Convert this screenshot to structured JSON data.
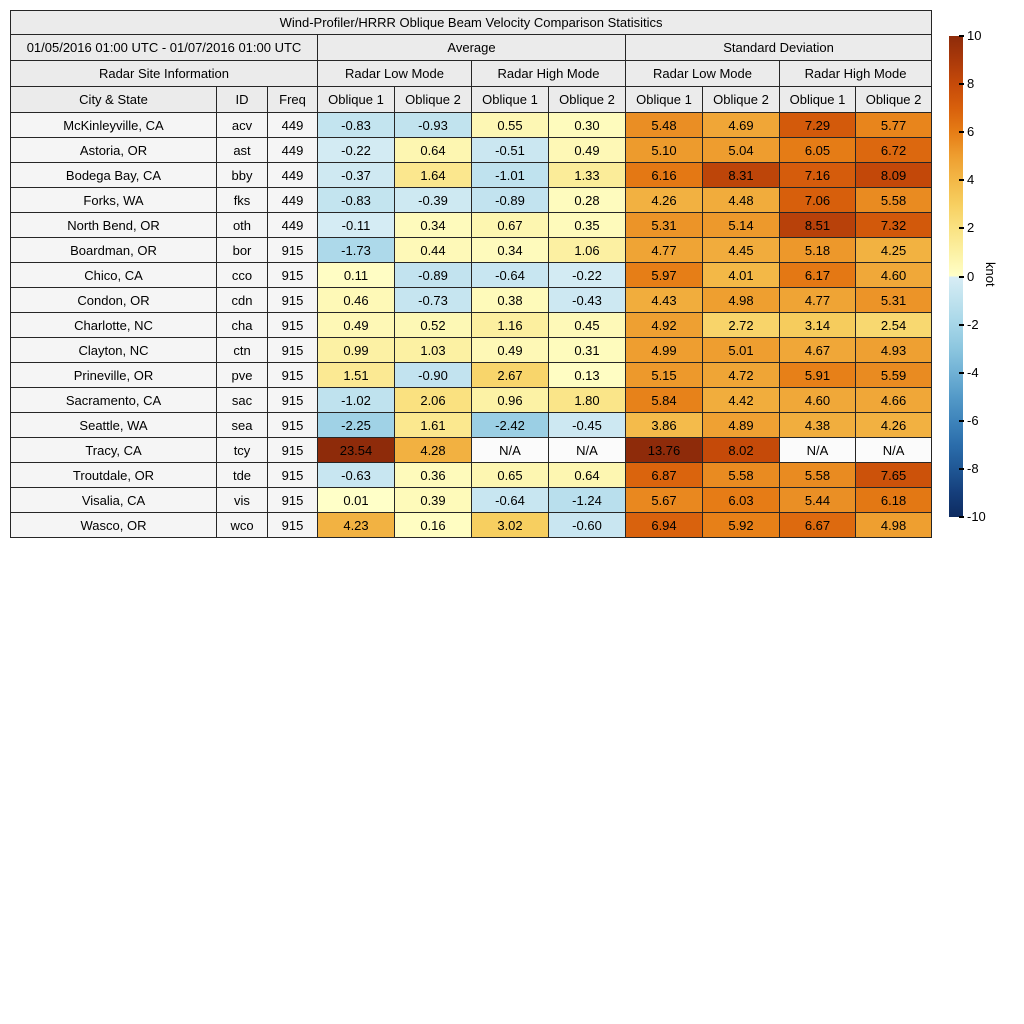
{
  "chart_data": {
    "type": "heatmap",
    "title": "Wind-Profiler/HRRR Oblique Beam Velocity Comparison Statisitics",
    "period": "01/05/2016 01:00 UTC - 01/07/2016 01:00 UTC",
    "group_headers": {
      "average": "Average",
      "std": "Standard Deviation"
    },
    "mode_headers": {
      "low": "Radar Low Mode",
      "high": "Radar High Mode"
    },
    "site_info_header": "Radar Site Information",
    "col_headers": {
      "city": "City & State",
      "id": "ID",
      "freq": "Freq",
      "oblique1": "Oblique 1",
      "oblique2": "Oblique 2"
    },
    "na_text": "N/A",
    "value_columns": [
      "Average Radar Low Mode Oblique 1",
      "Average Radar Low Mode Oblique 2",
      "Average Radar High Mode Oblique 1",
      "Average Radar High Mode Oblique 2",
      "Standard Deviation Radar Low Mode Oblique 1",
      "Standard Deviation Radar Low Mode Oblique 2",
      "Standard Deviation Radar High Mode Oblique 1",
      "Standard Deviation Radar High Mode Oblique 2"
    ],
    "rows": [
      {
        "city": "McKinleyville, CA",
        "id": "acv",
        "freq": 449,
        "values": [
          -0.83,
          -0.93,
          0.55,
          0.3,
          5.48,
          4.69,
          7.29,
          5.77
        ]
      },
      {
        "city": "Astoria, OR",
        "id": "ast",
        "freq": 449,
        "values": [
          -0.22,
          0.64,
          -0.51,
          0.49,
          5.1,
          5.04,
          6.05,
          6.72
        ]
      },
      {
        "city": "Bodega Bay, CA",
        "id": "bby",
        "freq": 449,
        "values": [
          -0.37,
          1.64,
          -1.01,
          1.33,
          6.16,
          8.31,
          7.16,
          8.09
        ]
      },
      {
        "city": "Forks, WA",
        "id": "fks",
        "freq": 449,
        "values": [
          -0.83,
          -0.39,
          -0.89,
          0.28,
          4.26,
          4.48,
          7.06,
          5.58
        ]
      },
      {
        "city": "North Bend, OR",
        "id": "oth",
        "freq": 449,
        "values": [
          -0.11,
          0.34,
          0.67,
          0.35,
          5.31,
          5.14,
          8.51,
          7.32
        ]
      },
      {
        "city": "Boardman, OR",
        "id": "bor",
        "freq": 915,
        "values": [
          -1.73,
          0.44,
          0.34,
          1.06,
          4.77,
          4.45,
          5.18,
          4.25
        ]
      },
      {
        "city": "Chico, CA",
        "id": "cco",
        "freq": 915,
        "values": [
          0.11,
          -0.89,
          -0.64,
          -0.22,
          5.97,
          4.01,
          6.17,
          4.6
        ]
      },
      {
        "city": "Condon, OR",
        "id": "cdn",
        "freq": 915,
        "values": [
          0.46,
          -0.73,
          0.38,
          -0.43,
          4.43,
          4.98,
          4.77,
          5.31
        ]
      },
      {
        "city": "Charlotte, NC",
        "id": "cha",
        "freq": 915,
        "values": [
          0.49,
          0.52,
          1.16,
          0.45,
          4.92,
          2.72,
          3.14,
          2.54
        ]
      },
      {
        "city": "Clayton, NC",
        "id": "ctn",
        "freq": 915,
        "values": [
          0.99,
          1.03,
          0.49,
          0.31,
          4.99,
          5.01,
          4.67,
          4.93
        ]
      },
      {
        "city": "Prineville, OR",
        "id": "pve",
        "freq": 915,
        "values": [
          1.51,
          -0.9,
          2.67,
          0.13,
          5.15,
          4.72,
          5.91,
          5.59
        ]
      },
      {
        "city": "Sacramento, CA",
        "id": "sac",
        "freq": 915,
        "values": [
          -1.02,
          2.06,
          0.96,
          1.8,
          5.84,
          4.42,
          4.6,
          4.66
        ]
      },
      {
        "city": "Seattle, WA",
        "id": "sea",
        "freq": 915,
        "values": [
          -2.25,
          1.61,
          -2.42,
          -0.45,
          3.86,
          4.89,
          4.38,
          4.26
        ]
      },
      {
        "city": "Tracy, CA",
        "id": "tcy",
        "freq": 915,
        "values": [
          23.54,
          4.28,
          null,
          null,
          13.76,
          8.02,
          null,
          null
        ]
      },
      {
        "city": "Troutdale, OR",
        "id": "tde",
        "freq": 915,
        "values": [
          -0.63,
          0.36,
          0.65,
          0.64,
          6.87,
          5.58,
          5.58,
          7.65
        ]
      },
      {
        "city": "Visalia, CA",
        "id": "vis",
        "freq": 915,
        "values": [
          0.01,
          0.39,
          -0.64,
          -1.24,
          5.67,
          6.03,
          5.44,
          6.18
        ]
      },
      {
        "city": "Wasco, OR",
        "id": "wco",
        "freq": 915,
        "values": [
          4.23,
          0.16,
          3.02,
          -0.6,
          6.94,
          5.92,
          6.67,
          4.98
        ]
      }
    ],
    "colorbar": {
      "label": "knot",
      "min": -10,
      "max": 10,
      "ticks": [
        10,
        8,
        6,
        4,
        2,
        0,
        -2,
        -4,
        -6,
        -8,
        -10
      ],
      "colormap": {
        "positive": [
          "#ffffc8",
          "#fcf1a4",
          "#fae282",
          "#f7cf60",
          "#f3b847",
          "#ee9e30",
          "#e67d16",
          "#d8600c",
          "#c64a09",
          "#aa390a",
          "#8e2b0a"
        ],
        "negative": [
          "#d8edf5",
          "#bfe2ee",
          "#a6d6e8",
          "#8cc6df",
          "#70b1d5",
          "#549ac8",
          "#3e84bb",
          "#2b6dab",
          "#1f5795",
          "#153e7b",
          "#0d2b60"
        ]
      }
    }
  }
}
